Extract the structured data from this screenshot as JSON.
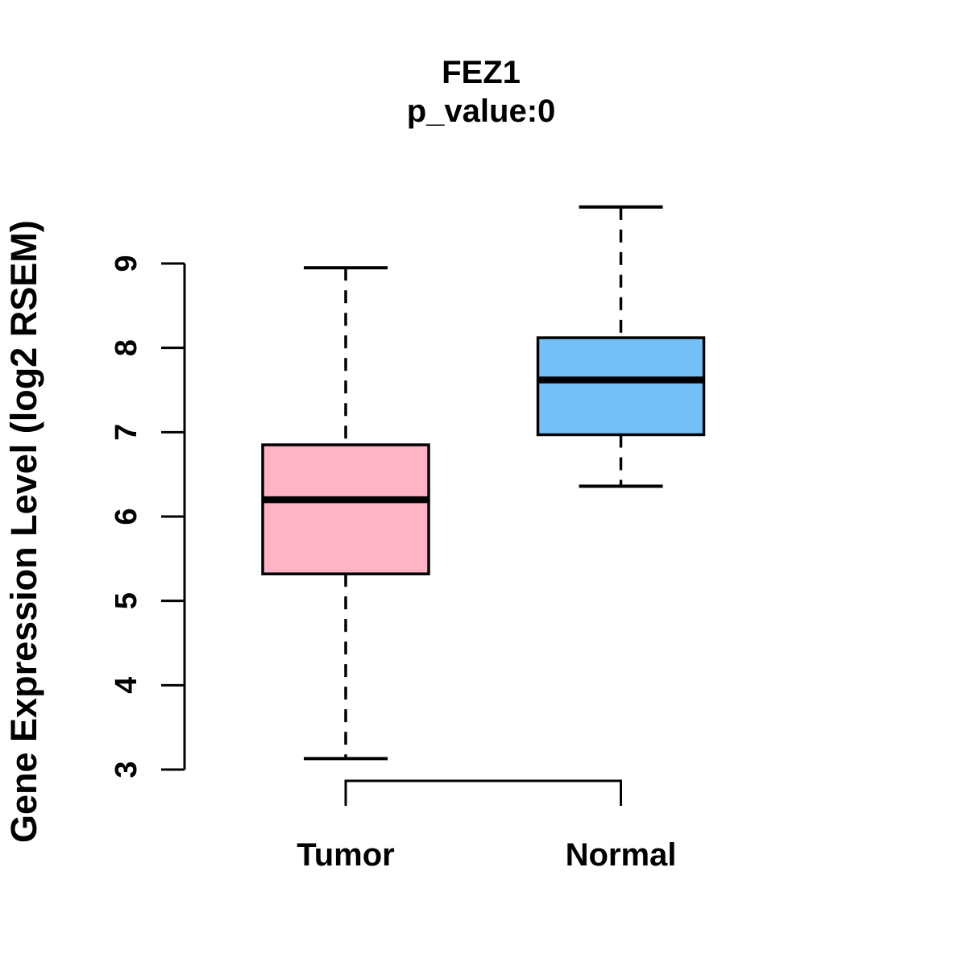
{
  "figure": {
    "background": "#FFFFFF",
    "text_color": "#000000"
  },
  "chart_data": {
    "type": "boxplot",
    "title": "FEZ1",
    "subtitle": "p_value:0",
    "ylabel": "Gene Expression Level (log2 RSEM)",
    "xlabel": "",
    "ylim": [
      3,
      9
    ],
    "yticks": [
      3,
      4,
      5,
      6,
      7,
      8,
      9
    ],
    "grid": "off",
    "legend": "none",
    "categories": [
      "Tumor",
      "Normal"
    ],
    "series": [
      {
        "name": "Tumor",
        "color": "#FFB3C4",
        "whisker_low": 3.13,
        "q1": 5.32,
        "median": 6.2,
        "q3": 6.85,
        "whisker_high": 8.95
      },
      {
        "name": "Normal",
        "color": "#74BFF8",
        "whisker_low": 6.36,
        "q1": 6.97,
        "median": 7.62,
        "q3": 8.12,
        "whisker_high": 9.67
      }
    ],
    "styles": {
      "box_border_color": "#000000",
      "median_color": "#000000",
      "whisker_line_style": "dashed",
      "axis_color": "#000000"
    }
  }
}
